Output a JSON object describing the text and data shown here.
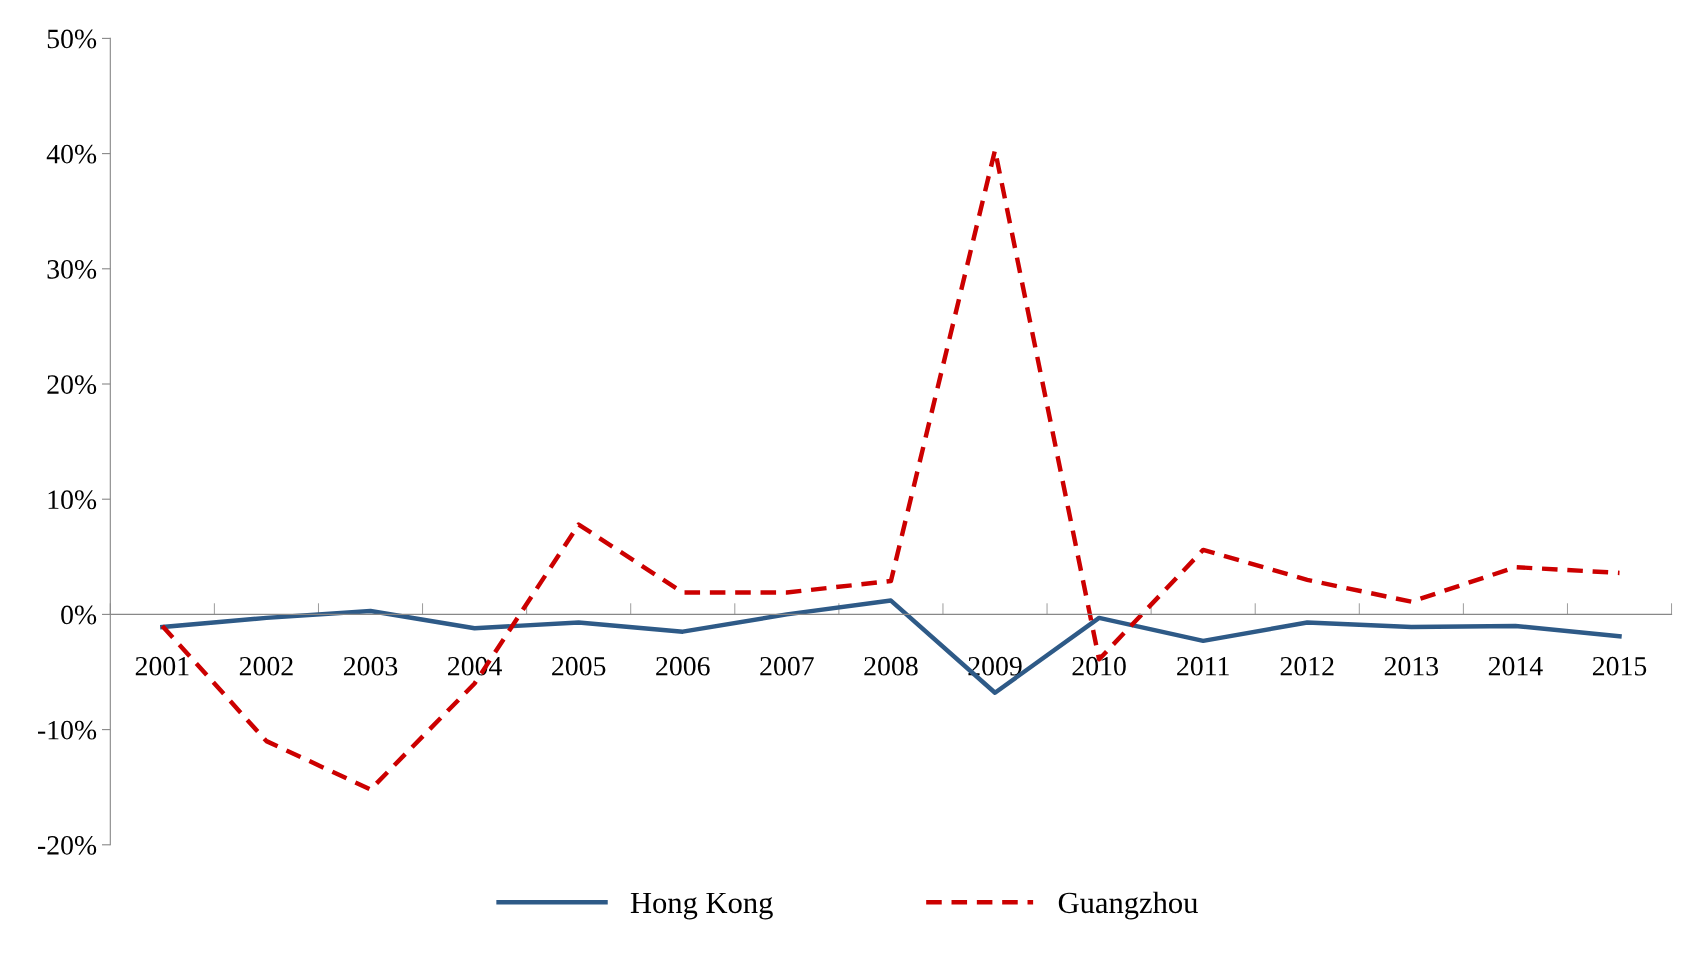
{
  "chart_data": {
    "type": "line",
    "categories": [
      "2001",
      "2002",
      "2003",
      "2004",
      "2005",
      "2006",
      "2007",
      "2008",
      "2009",
      "2010",
      "2011",
      "2012",
      "2013",
      "2014",
      "2015"
    ],
    "series": [
      {
        "name": "Hong Kong",
        "color": "#2e5a87",
        "line_style": "solid",
        "values": [
          -1.1,
          -0.3,
          0.3,
          -1.2,
          -0.7,
          -1.5,
          0.0,
          1.2,
          -6.8,
          -0.3,
          -2.3,
          -0.7,
          -1.1,
          -1.0,
          -1.9
        ]
      },
      {
        "name": "Guangzhou",
        "color": "#cc0000",
        "line_style": "dashed",
        "values": [
          -1.0,
          -11.0,
          -15.2,
          -6.0,
          7.8,
          1.9,
          1.9,
          2.9,
          40.3,
          -3.9,
          5.6,
          3.0,
          1.1,
          4.1,
          3.6
        ]
      }
    ],
    "ylim": [
      -20,
      50
    ],
    "yticks": [
      {
        "value": -20,
        "label": "-20%"
      },
      {
        "value": -10,
        "label": "-10%"
      },
      {
        "value": 0,
        "label": "0%"
      },
      {
        "value": 10,
        "label": "10%"
      },
      {
        "value": 20,
        "label": "20%"
      },
      {
        "value": 30,
        "label": "30%"
      },
      {
        "value": 40,
        "label": "40%"
      },
      {
        "value": 50,
        "label": "50%"
      }
    ],
    "grid": false,
    "legend": "bottom",
    "marker": "none"
  }
}
